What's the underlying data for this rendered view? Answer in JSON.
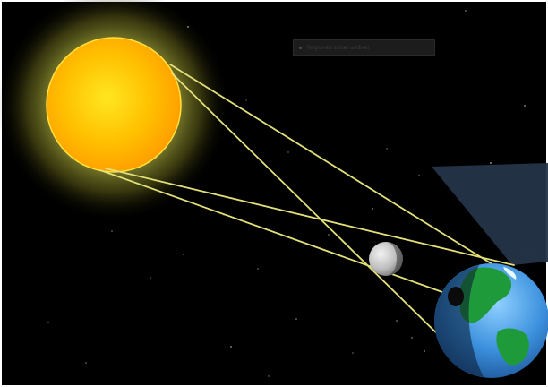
{
  "caption": {
    "text": "Regiunea zonei umbrei"
  },
  "bodies": {
    "sun": {
      "icon": "sun-icon",
      "color": "#ffb300",
      "glow_color": "#e0e04a"
    },
    "moon": {
      "icon": "moon-icon",
      "color": "#c8c8c8"
    },
    "earth": {
      "icon": "earth-icon",
      "ocean_color": "#2f7fd0",
      "land_color": "#1f9a3a"
    }
  },
  "colors": {
    "space": "#000000",
    "rays": "#e3e07a",
    "shadow_cone": "#233347"
  }
}
